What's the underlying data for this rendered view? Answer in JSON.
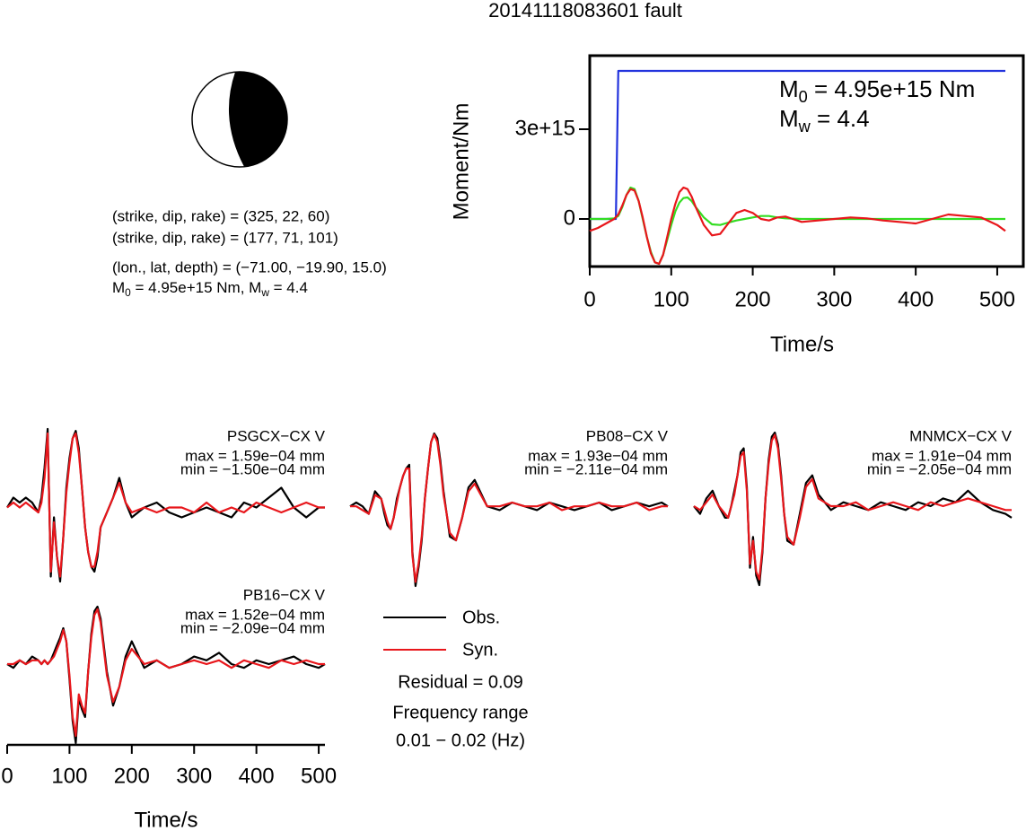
{
  "title": "20141118083601 fault",
  "focal_mechanism": {
    "planes": [
      "(strike, dip, rake) = (325, 22, 60)",
      "(strike, dip, rake) = (177, 71, 101)"
    ],
    "location": "(lon., lat, depth) = (−71.00, −19.90, 15.0)",
    "magnitude": [
      {
        "text": "M"
      },
      {
        "sub": "0"
      },
      {
        "text": " = 4.95e+15 Nm, M"
      },
      {
        "sub": "w"
      },
      {
        "text": " = 4.4"
      }
    ]
  },
  "legend_notes": [
    "Residual = 0.09",
    "Frequency range",
    "0.01 − 0.02 (Hz)"
  ],
  "chart_data": [
    {
      "type": "line",
      "xlabel": "Time/s",
      "ylabel": "Moment/Nm",
      "xlim": [
        0,
        532
      ],
      "xticks": [
        0,
        100,
        200,
        300,
        400,
        500
      ],
      "ylim": [
        -1590000000000000.0,
        5460000000000000.0
      ],
      "yticks": [
        0,
        {
          "value": 3000000000000000.0,
          "label": "3e+15"
        }
      ],
      "annotations": [
        [
          {
            "text": "M"
          },
          {
            "sub": "0"
          },
          {
            "text": " = 4.95e+15 Nm"
          }
        ],
        [
          {
            "text": "M"
          },
          {
            "sub": "w"
          },
          {
            "text": " = 4.4"
          }
        ]
      ],
      "series": [
        {
          "color": "#2233dd",
          "x": [
            0,
            32,
            35,
            510
          ],
          "values": [
            0,
            0,
            4950000000000000.0,
            4950000000000000.0
          ]
        },
        {
          "color": "#33dd22",
          "x": [
            0,
            10,
            20,
            30,
            35,
            40,
            45,
            50,
            55,
            60,
            65,
            70,
            75,
            80,
            85,
            90,
            95,
            100,
            105,
            110,
            115,
            120,
            125,
            130,
            140,
            150,
            160,
            170,
            180,
            190,
            200,
            210,
            220,
            230,
            240,
            260,
            280,
            300,
            320,
            340,
            360,
            380,
            400,
            420,
            440,
            460,
            480,
            500,
            510
          ],
          "values": [
            0,
            0,
            0,
            20000000000000.0,
            100000000000000.0,
            400000000000000.0,
            800000000000000.0,
            1050000000000000.0,
            1000000000000000.0,
            600000000000000.0,
            0,
            -600000000000000.0,
            -1100000000000000.0,
            -1450000000000000.0,
            -1500000000000000.0,
            -1200000000000000.0,
            -700000000000000.0,
            -200000000000000.0,
            250000000000000.0,
            550000000000000.0,
            700000000000000.0,
            720000000000000.0,
            600000000000000.0,
            400000000000000.0,
            50000000000000.0,
            -180000000000000.0,
            -200000000000000.0,
            -120000000000000.0,
            -50000000000000.0,
            0,
            50000000000000.0,
            100000000000000.0,
            100000000000000.0,
            50000000000000.0,
            20000000000000.0,
            0,
            0,
            0,
            0,
            0,
            0,
            0,
            0,
            0,
            0,
            0,
            0,
            0,
            0
          ]
        },
        {
          "color": "#e8161b",
          "x": [
            0,
            10,
            20,
            30,
            35,
            40,
            45,
            50,
            55,
            60,
            65,
            70,
            75,
            80,
            85,
            90,
            95,
            100,
            105,
            110,
            115,
            120,
            125,
            130,
            140,
            150,
            160,
            170,
            180,
            190,
            200,
            210,
            220,
            230,
            240,
            260,
            280,
            300,
            320,
            340,
            360,
            380,
            400,
            420,
            440,
            460,
            480,
            500,
            510
          ],
          "values": [
            -400000000000000.0,
            -300000000000000.0,
            -150000000000000.0,
            0,
            150000000000000.0,
            450000000000000.0,
            800000000000000.0,
            1000000000000000.0,
            950000000000000.0,
            600000000000000.0,
            50000000000000.0,
            -600000000000000.0,
            -1150000000000000.0,
            -1450000000000000.0,
            -1500000000000000.0,
            -1200000000000000.0,
            -600000000000000.0,
            0,
            500000000000000.0,
            900000000000000.0,
            1050000000000000.0,
            1000000000000000.0,
            750000000000000.0,
            400000000000000.0,
            -200000000000000.0,
            -550000000000000.0,
            -500000000000000.0,
            -150000000000000.0,
            200000000000000.0,
            300000000000000.0,
            200000000000000.0,
            0,
            -50000000000000.0,
            50000000000000.0,
            80000000000000.0,
            -100000000000000.0,
            -50000000000000.0,
            0,
            50000000000000.0,
            20000000000000.0,
            -50000000000000.0,
            -100000000000000.0,
            -150000000000000.0,
            0,
            150000000000000.0,
            100000000000000.0,
            50000000000000.0,
            -200000000000000.0,
            -400000000000000.0
          ]
        }
      ]
    },
    {
      "type": "line",
      "title": "PSGCX−CX V",
      "annotations": [
        "max = 1.59e−04 mm",
        "min = −1.50e−04 mm"
      ],
      "x": [
        0,
        10,
        20,
        30,
        40,
        50,
        55,
        60,
        65,
        70,
        75,
        80,
        85,
        90,
        95,
        100,
        105,
        110,
        115,
        120,
        125,
        130,
        135,
        140,
        145,
        150,
        160,
        170,
        180,
        190,
        200,
        220,
        240,
        260,
        280,
        300,
        320,
        340,
        360,
        380,
        400,
        420,
        440,
        460,
        480,
        500,
        510
      ],
      "series": [
        {
          "name": "Obs.",
          "color": "#000000",
          "values": [
            0,
            2e-05,
            1e-05,
            2e-05,
            1e-05,
            -1e-05,
            2e-05,
            8e-05,
            0.000159,
            -0.00014,
            -2e-05,
            -0.0001,
            -0.00015,
            -6e-05,
            4e-05,
            0.0001,
            0.00014,
            0.000155,
            0.00012,
            4e-05,
            -4e-05,
            -9e-05,
            -0.00012,
            -0.00013,
            -0.0001,
            -4e-05,
            -1e-05,
            2e-05,
            6e-05,
            1e-05,
            -2e-05,
            0,
            1e-05,
            -1e-05,
            -2e-05,
            -1e-05,
            0,
            -1e-05,
            -2e-05,
            1e-05,
            0,
            2e-05,
            4e-05,
            0,
            -2e-05,
            0,
            0
          ]
        },
        {
          "name": "Syn.",
          "color": "#e8161b",
          "values": [
            0,
            1e-05,
            0,
            1e-05,
            0,
            -1e-05,
            1e-05,
            6e-05,
            0.00015,
            -0.00013,
            -3e-05,
            -0.0001,
            -0.00014,
            -6e-05,
            3e-05,
            9e-05,
            0.00014,
            0.00015,
            0.00011,
            4e-05,
            -4e-05,
            -9e-05,
            -0.00012,
            -0.00012,
            -9e-05,
            -4e-05,
            -1e-05,
            2e-05,
            5e-05,
            1e-05,
            -1e-05,
            0,
            -1e-05,
            0,
            0,
            -1e-05,
            1e-05,
            -1e-05,
            0,
            -1e-05,
            1e-05,
            0,
            -1e-05,
            0,
            1e-05,
            0,
            0
          ]
        }
      ]
    },
    {
      "type": "line",
      "title": "PB08−CX V",
      "annotations": [
        "max = 1.93e−04 mm",
        "min = −2.11e−04 mm"
      ],
      "x": [
        0,
        10,
        20,
        30,
        40,
        50,
        55,
        60,
        65,
        70,
        75,
        80,
        85,
        90,
        95,
        100,
        105,
        110,
        115,
        120,
        125,
        130,
        135,
        140,
        145,
        150,
        160,
        170,
        180,
        190,
        200,
        220,
        240,
        260,
        280,
        300,
        320,
        340,
        360,
        380,
        400,
        420,
        440,
        460,
        480,
        500,
        510
      ],
      "series": [
        {
          "color": "#000000",
          "values": [
            0,
            1e-05,
            0,
            -2e-05,
            4e-05,
            2e-05,
            -2e-05,
            -5e-05,
            -6e-05,
            -3e-05,
            2e-05,
            5e-05,
            8e-05,
            0.0001,
            0.00011,
            -0.00012,
            -0.000211,
            -0.00016,
            -9e-05,
            2e-05,
            0.0001,
            0.00017,
            0.000193,
            0.00018,
            0.00012,
            4e-05,
            -8e-05,
            -9e-05,
            -3e-05,
            5e-05,
            7e-05,
            0,
            -1e-05,
            1e-05,
            0,
            -1e-05,
            1e-05,
            0,
            -1e-05,
            0,
            1e-05,
            -1e-05,
            0,
            1e-05,
            0,
            1e-05,
            0
          ]
        },
        {
          "color": "#e8161b",
          "values": [
            0,
            0,
            -1e-05,
            -2e-05,
            3e-05,
            2e-05,
            -1e-05,
            -4e-05,
            -6e-05,
            -3e-05,
            1e-05,
            5e-05,
            8e-05,
            0.0001,
            0.0001,
            -0.00013,
            -0.0002,
            -0.00015,
            -8e-05,
            2e-05,
            0.0001,
            0.00017,
            0.00019,
            0.00017,
            0.00011,
            3e-05,
            -7e-05,
            -9e-05,
            -3e-05,
            4e-05,
            6e-05,
            0,
            0,
            1e-05,
            0,
            0,
            1e-05,
            -1e-05,
            0,
            0,
            1e-05,
            0,
            0,
            1e-05,
            -1e-05,
            0,
            0
          ]
        }
      ]
    },
    {
      "type": "line",
      "title": "MNMCX−CX V",
      "annotations": [
        "max = 1.91e−04 mm",
        "min = −2.05e−04 mm"
      ],
      "x": [
        0,
        10,
        20,
        30,
        40,
        50,
        55,
        60,
        65,
        70,
        75,
        80,
        85,
        90,
        95,
        100,
        105,
        110,
        115,
        120,
        125,
        130,
        135,
        140,
        145,
        150,
        160,
        170,
        180,
        190,
        200,
        220,
        240,
        260,
        280,
        300,
        320,
        340,
        360,
        380,
        400,
        420,
        440,
        460,
        480,
        500,
        510
      ],
      "series": [
        {
          "color": "#000000",
          "values": [
            0,
            -2e-05,
            2e-05,
            4e-05,
            0,
            -3e-05,
            -3e-05,
            0,
            4e-05,
            8e-05,
            0.00014,
            0.00015,
            5e-05,
            -0.00016,
            -8e-05,
            -0.00018,
            -0.000205,
            -0.00012,
            2e-05,
            0.00012,
            0.00018,
            0.000191,
            0.00016,
            8e-05,
            -2e-05,
            -9e-05,
            -0.0001,
            -2e-05,
            6e-05,
            8e-05,
            3e-05,
            -1e-05,
            1e-05,
            0,
            -1e-05,
            1e-05,
            0,
            -1e-05,
            1e-05,
            0,
            2e-05,
            1e-05,
            4e-05,
            1e-05,
            -1e-05,
            -2e-05,
            -3e-05
          ]
        },
        {
          "color": "#e8161b",
          "values": [
            0,
            -1e-05,
            1e-05,
            3e-05,
            0,
            -2e-05,
            -3e-05,
            0,
            3e-05,
            8e-05,
            0.00013,
            0.00014,
            4e-05,
            -0.00015,
            -9e-05,
            -0.00017,
            -0.00019,
            -0.00011,
            2e-05,
            0.00011,
            0.00017,
            0.000185,
            0.00015,
            7e-05,
            -2e-05,
            -8e-05,
            -0.0001,
            -3e-05,
            5e-05,
            7e-05,
            2e-05,
            0,
            0,
            1e-05,
            -1e-05,
            0,
            1e-05,
            0,
            -1e-05,
            1e-05,
            0,
            1e-05,
            2e-05,
            1e-05,
            0,
            -1e-05,
            -1e-05
          ]
        }
      ]
    },
    {
      "type": "line",
      "title": "PB16−CX V",
      "annotations": [
        "max = 1.52e−04 mm",
        "min = −2.09e−04 mm"
      ],
      "xlabel": "Time/s",
      "xlim": [
        0,
        510
      ],
      "xticks": [
        0,
        100,
        200,
        300,
        400,
        500
      ],
      "x": [
        0,
        10,
        20,
        30,
        40,
        50,
        55,
        60,
        65,
        70,
        75,
        80,
        85,
        90,
        95,
        100,
        105,
        110,
        115,
        120,
        125,
        130,
        135,
        140,
        145,
        150,
        160,
        170,
        180,
        190,
        200,
        220,
        240,
        260,
        280,
        300,
        320,
        340,
        360,
        380,
        400,
        420,
        440,
        460,
        480,
        500,
        510
      ],
      "series": [
        {
          "color": "#000000",
          "values": [
            0,
            -1e-05,
            1e-05,
            0,
            2e-05,
            1e-05,
            0,
            1e-05,
            0,
            1e-05,
            3e-05,
            5e-05,
            7e-05,
            9.5e-05,
            6e-05,
            -4e-05,
            -0.00015,
            -0.000209,
            -9e-05,
            -0.00012,
            -0.00014,
            -2e-05,
            8e-05,
            0.00014,
            0.000152,
            0.00012,
            -2e-05,
            -0.00011,
            -6e-05,
            2e-05,
            6e-05,
            -1e-05,
            1e-05,
            -1e-05,
            0,
            2e-05,
            1e-05,
            3e-05,
            0,
            -1e-05,
            1e-05,
            0,
            1e-05,
            2e-05,
            0,
            -1e-05,
            0
          ]
        },
        {
          "color": "#e8161b",
          "values": [
            0,
            0,
            1e-05,
            0,
            1e-05,
            1e-05,
            0,
            1e-05,
            0,
            1e-05,
            2e-05,
            4e-05,
            6e-05,
            9e-05,
            6e-05,
            -3e-05,
            -0.00014,
            -0.00019,
            -8e-05,
            -0.00011,
            -0.00013,
            -2e-05,
            7e-05,
            0.00013,
            0.000145,
            0.00011,
            -3e-05,
            -0.0001,
            -6e-05,
            1e-05,
            4e-05,
            0,
            1e-05,
            -1e-05,
            0,
            1e-05,
            0,
            1e-05,
            -1e-05,
            1e-05,
            0,
            -1e-05,
            1e-05,
            0,
            1e-05,
            0,
            0
          ]
        }
      ]
    }
  ]
}
